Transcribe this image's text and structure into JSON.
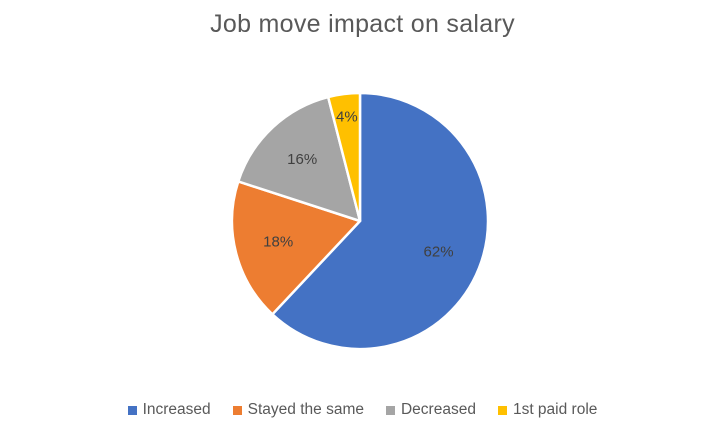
{
  "chart_data": {
    "type": "pie",
    "title": "Job move impact on salary",
    "labels": [
      "Increased",
      "Stayed the same",
      "Decreased",
      "1st paid role"
    ],
    "values": [
      62,
      18,
      16,
      4
    ],
    "data_labels": [
      "62%",
      "18%",
      "16%",
      "4%"
    ],
    "colors": [
      "#4472C4",
      "#ED7D31",
      "#A5A5A5",
      "#FFC000"
    ],
    "legend_position": "bottom"
  }
}
